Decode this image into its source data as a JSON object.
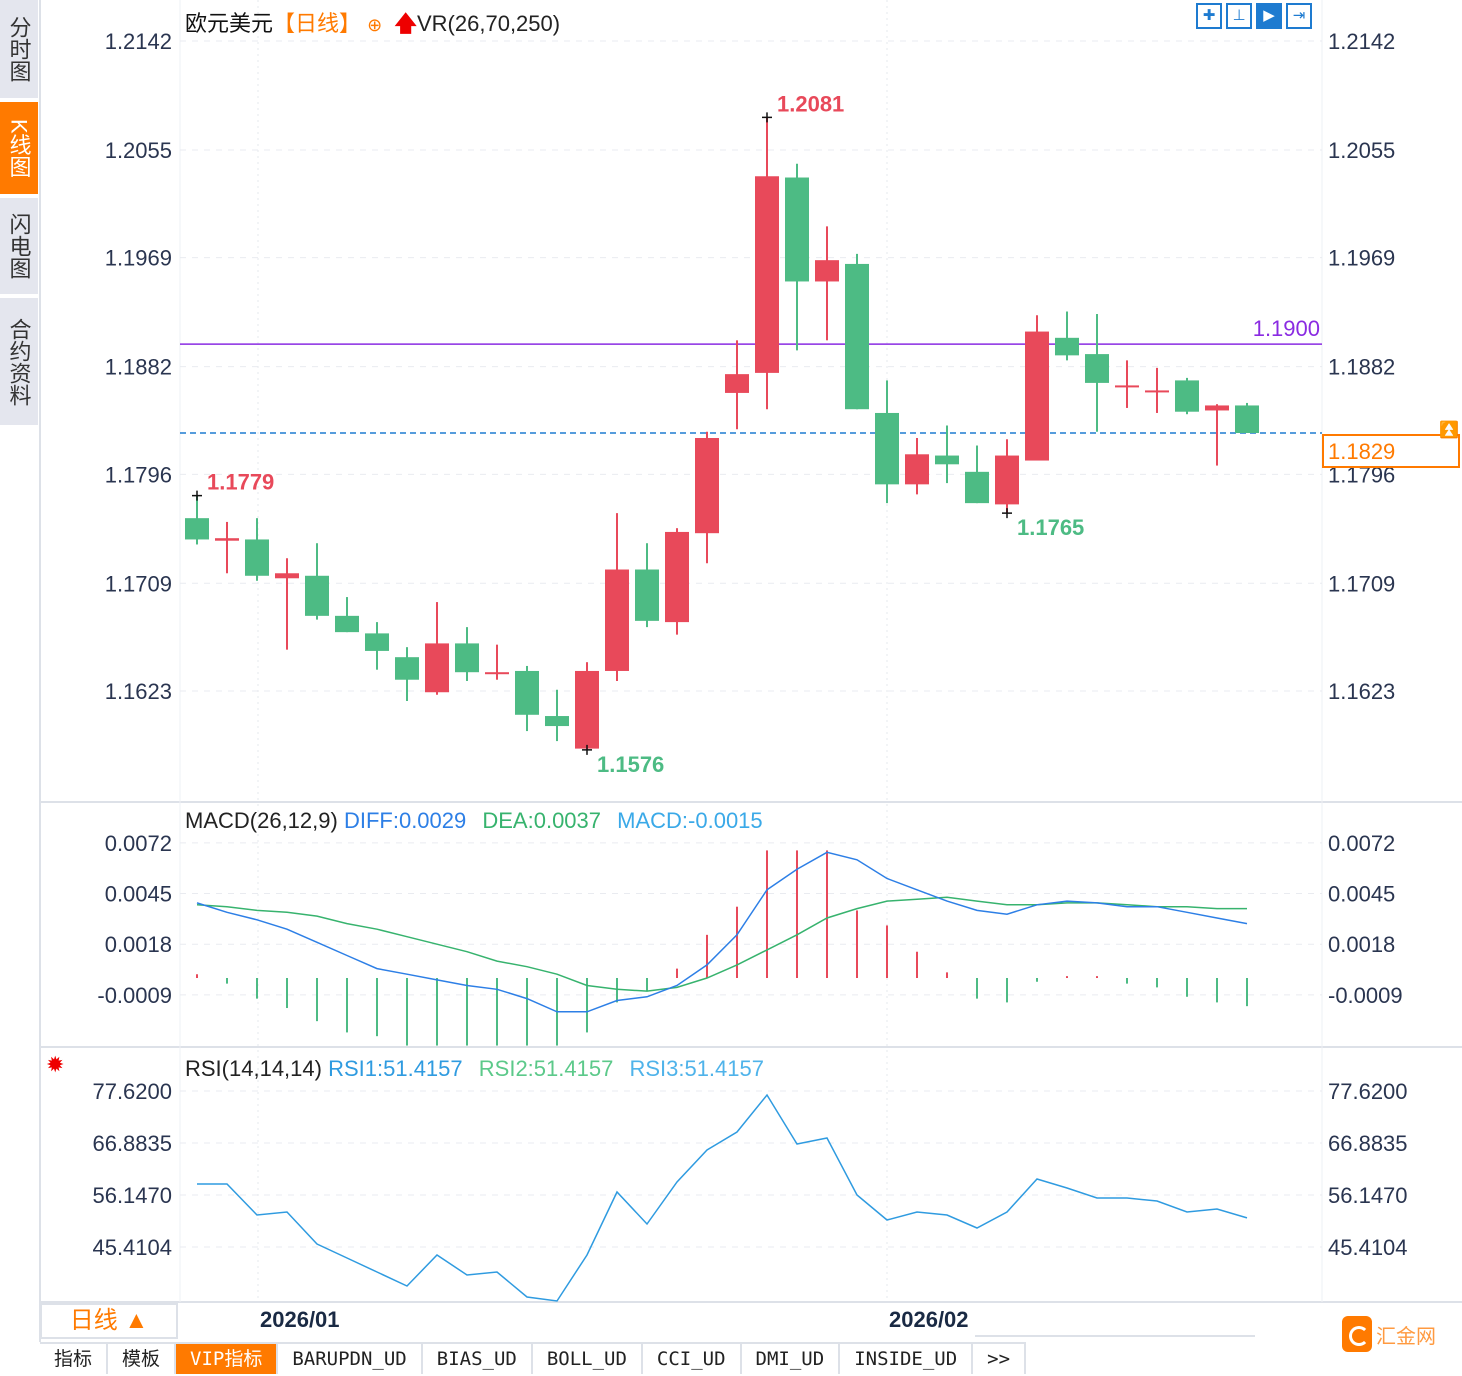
{
  "sidebar": {
    "items": [
      {
        "label": "分时图",
        "active": false
      },
      {
        "label": "K线图",
        "active": true
      },
      {
        "label": "闪电图",
        "active": false
      },
      {
        "label": "合约资料",
        "active": false
      }
    ]
  },
  "header": {
    "symbol": "欧元美元",
    "period": "【日线】",
    "indicator": "VR(26,70,250)",
    "add_icon": "crosshair-circle-icon",
    "indicator_icon": "red-up-arrow-icon"
  },
  "toolbar": {
    "buttons": [
      {
        "icon": "crosshair-icon",
        "active": false
      },
      {
        "icon": "axis-range-icon",
        "active": false
      },
      {
        "icon": "axis-play-icon",
        "active": true
      },
      {
        "icon": "scroll-to-end-icon",
        "active": false
      }
    ]
  },
  "colors": {
    "up": "#e8495a",
    "down": "#4dbb84",
    "diff": "#2d7fe6",
    "dea": "#37b36e",
    "rsi": "#2f9be0",
    "level_line": "#8a2be2",
    "last_price": "#ff7a00",
    "accent": "#ff7a00"
  },
  "chart_data": [
    {
      "type": "candlestick",
      "title": "欧元美元 【日线】",
      "ylim": [
        1.154,
        1.2142
      ],
      "y_ticks": [
        "1.2142",
        "1.2055",
        "1.1969",
        "1.1882",
        "1.1796",
        "1.1709",
        "1.1623"
      ],
      "x_ticks": [
        "2026/01",
        "2026/02"
      ],
      "ohlc": [
        [
          1.1761,
          1.1779,
          1.174,
          1.1744
        ],
        [
          1.1743,
          1.1758,
          1.1717,
          1.1745
        ],
        [
          1.1744,
          1.1761,
          1.1711,
          1.1715
        ],
        [
          1.1713,
          1.1729,
          1.1656,
          1.1717
        ],
        [
          1.1715,
          1.1741,
          1.168,
          1.1683
        ],
        [
          1.1683,
          1.1698,
          1.167,
          1.167
        ],
        [
          1.1669,
          1.1678,
          1.164,
          1.1655
        ],
        [
          1.165,
          1.1658,
          1.1615,
          1.1632
        ],
        [
          1.1622,
          1.1694,
          1.162,
          1.1661
        ],
        [
          1.1661,
          1.1674,
          1.1631,
          1.1638
        ],
        [
          1.1637,
          1.166,
          1.1632,
          1.1638
        ],
        [
          1.1639,
          1.1643,
          1.1591,
          1.1604
        ],
        [
          1.1603,
          1.1624,
          1.1583,
          1.1595
        ],
        [
          1.1577,
          1.1646,
          1.1576,
          1.1639
        ],
        [
          1.1639,
          1.1765,
          1.1631,
          1.172
        ],
        [
          1.172,
          1.1741,
          1.1674,
          1.1679
        ],
        [
          1.1678,
          1.1753,
          1.1668,
          1.175
        ],
        [
          1.1749,
          1.183,
          1.1725,
          1.1825
        ],
        [
          1.1861,
          1.1903,
          1.1832,
          1.1876
        ],
        [
          1.1877,
          1.2081,
          1.1848,
          1.2034
        ],
        [
          1.2033,
          1.2044,
          1.1895,
          1.195
        ],
        [
          1.195,
          1.1994,
          1.1903,
          1.1967
        ],
        [
          1.1964,
          1.1972,
          1.1848,
          1.1848
        ],
        [
          1.1845,
          1.1871,
          1.1773,
          1.1788
        ],
        [
          1.1788,
          1.1825,
          1.178,
          1.1812
        ],
        [
          1.1811,
          1.1835,
          1.1789,
          1.1804
        ],
        [
          1.1798,
          1.1819,
          1.1773,
          1.1773
        ],
        [
          1.1772,
          1.1824,
          1.1765,
          1.1811
        ],
        [
          1.1807,
          1.1923,
          1.1807,
          1.191
        ],
        [
          1.1905,
          1.1926,
          1.1887,
          1.1891
        ],
        [
          1.1892,
          1.1924,
          1.183,
          1.1869
        ],
        [
          1.1866,
          1.1887,
          1.1849,
          1.1867
        ],
        [
          1.1862,
          1.1881,
          1.1845,
          1.1863
        ],
        [
          1.1871,
          1.1873,
          1.1844,
          1.1846
        ],
        [
          1.1847,
          1.1852,
          1.1803,
          1.1851
        ],
        [
          1.1851,
          1.1853,
          1.1829,
          1.1829
        ]
      ],
      "annotations": [
        {
          "text": "1.2081",
          "index": 19,
          "at": "high",
          "color": "#e8495a"
        },
        {
          "text": "1.1779",
          "index": 0,
          "at": "high",
          "color": "#e8495a"
        },
        {
          "text": "1.1576",
          "index": 13,
          "at": "low",
          "color": "#4dbb84"
        },
        {
          "text": "1.1765",
          "index": 27,
          "at": "low",
          "color": "#4dbb84"
        }
      ],
      "level_line": {
        "value": 1.19,
        "label": "1.1900"
      },
      "last_price": {
        "value": 1.1829,
        "label": "1.1829"
      }
    },
    {
      "type": "macd",
      "title": "MACD(26,12,9)",
      "legend": {
        "diff": "DIFF:0.0029",
        "dea": "DEA:0.0037",
        "macd": "MACD:-0.0015"
      },
      "ylim": [
        -0.0035,
        0.0072
      ],
      "y_ticks": [
        "0.0072",
        "0.0045",
        "0.0018",
        "-0.0009"
      ],
      "diff": [
        0.004,
        0.0035,
        0.0031,
        0.0026,
        0.0019,
        0.0012,
        0.0005,
        0.0002,
        -0.0001,
        -0.0004,
        -0.0006,
        -0.0011,
        -0.0018,
        -0.0018,
        -0.0012,
        -0.001,
        -0.0004,
        0.0007,
        0.0023,
        0.0047,
        0.0058,
        0.0067,
        0.0063,
        0.0053,
        0.0047,
        0.0041,
        0.0036,
        0.0034,
        0.0039,
        0.0041,
        0.004,
        0.0038,
        0.0038,
        0.0035,
        0.0032,
        0.0029
      ],
      "dea": [
        0.0039,
        0.0038,
        0.0036,
        0.0035,
        0.0033,
        0.0029,
        0.0026,
        0.0022,
        0.0018,
        0.0014,
        0.0009,
        0.0006,
        0.0002,
        -0.0004,
        -0.0006,
        -0.0007,
        -0.0005,
        0.0,
        0.0007,
        0.0015,
        0.0023,
        0.0032,
        0.0037,
        0.0041,
        0.0042,
        0.0043,
        0.0041,
        0.0039,
        0.0039,
        0.004,
        0.004,
        0.0039,
        0.0038,
        0.0038,
        0.0037,
        0.0037
      ],
      "macd": [
        0.0002,
        -0.0003,
        -0.0011,
        -0.0016,
        -0.0023,
        -0.0029,
        -0.0031,
        -0.0036,
        -0.0036,
        -0.0036,
        -0.0036,
        -0.0036,
        -0.0036,
        -0.0029,
        -0.0013,
        -0.0007,
        0.0005,
        0.0023,
        0.0038,
        0.0068,
        0.0068,
        0.0068,
        0.0036,
        0.0028,
        0.0014,
        0.0003,
        -0.0011,
        -0.0013,
        -0.0002,
        0.0001,
        0.0001,
        -0.0003,
        -0.0005,
        -0.001,
        -0.0013,
        -0.0015
      ]
    },
    {
      "type": "line",
      "title": "RSI(14,14,14)",
      "legend": {
        "rsi1": "RSI1:51.4157",
        "rsi2": "RSI2:51.4157",
        "rsi3": "RSI3:51.4157"
      },
      "ylim": [
        34.0,
        78.5
      ],
      "y_ticks": [
        "77.6200",
        "66.8835",
        "56.1470",
        "45.4104"
      ],
      "values": [
        58.42,
        58.42,
        52.02,
        52.64,
        46.03,
        43.14,
        40.25,
        37.36,
        43.76,
        39.63,
        40.25,
        35.08,
        34.26,
        43.76,
        56.77,
        50.16,
        58.83,
        65.44,
        69.15,
        76.79,
        66.68,
        67.92,
        56.15,
        50.98,
        52.64,
        52.02,
        49.33,
        52.64,
        59.45,
        57.59,
        55.53,
        55.53,
        54.91,
        52.64,
        53.25,
        51.42
      ]
    }
  ],
  "footer": {
    "period_label": "日线 ▲",
    "tabs": [
      {
        "label": "指标",
        "active": false
      },
      {
        "label": "模板",
        "active": false
      },
      {
        "label": "VIP指标",
        "active": true
      },
      {
        "label": "BARUPDN_UD",
        "active": false
      },
      {
        "label": "BIAS_UD",
        "active": false
      },
      {
        "label": "BOLL_UD",
        "active": false
      },
      {
        "label": "CCI_UD",
        "active": false
      },
      {
        "label": "DMI_UD",
        "active": false
      },
      {
        "label": "INSIDE_UD",
        "active": false
      },
      {
        "label": ">>",
        "active": false
      }
    ],
    "logo_text": "汇金网"
  }
}
